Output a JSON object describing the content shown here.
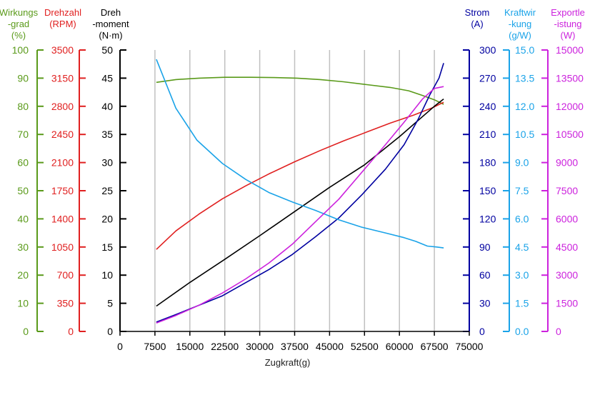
{
  "chart_data": {
    "type": "line",
    "xlabel": "Zugkraft(g)",
    "xlim": [
      0,
      75000
    ],
    "xticks": [
      0,
      7500,
      15000,
      22500,
      30000,
      37500,
      45000,
      52500,
      60000,
      67500,
      75000
    ],
    "grid": {
      "vertical": true,
      "horizontal": false
    },
    "axes": [
      {
        "id": "eff",
        "side": "left",
        "title": [
          "Wirkungs",
          "-grad",
          "(%)"
        ],
        "color": "#5a9a1a",
        "min": 0,
        "max": 100,
        "ticks": [
          0,
          10,
          20,
          30,
          40,
          50,
          60,
          70,
          80,
          90,
          100
        ]
      },
      {
        "id": "rpm",
        "side": "left",
        "title": [
          "Drehzahl",
          "(RPM)"
        ],
        "color": "#e02020",
        "min": 0,
        "max": 3500,
        "ticks": [
          0,
          350,
          700,
          1050,
          1400,
          1750,
          2100,
          2450,
          2800,
          3150,
          3500
        ]
      },
      {
        "id": "torque",
        "side": "left",
        "title": [
          "Dreh",
          "-moment",
          "(N·m)"
        ],
        "color": "#000000",
        "min": 0,
        "max": 50,
        "ticks": [
          0,
          5,
          10,
          15,
          20,
          25,
          30,
          35,
          40,
          45,
          50
        ]
      },
      {
        "id": "current",
        "side": "right",
        "title": [
          "Strom",
          "(A)"
        ],
        "color": "#0000a0",
        "min": 0,
        "max": 300,
        "ticks": [
          0,
          30,
          60,
          90,
          120,
          150,
          180,
          210,
          240,
          270,
          300
        ]
      },
      {
        "id": "ratio",
        "side": "right",
        "title": [
          "Kraftwir",
          "-kung",
          "(g/W)"
        ],
        "color": "#1aa3e8",
        "min": 0,
        "max": 15,
        "ticks": [
          "0.0",
          "1.5",
          "3.0",
          "4.5",
          "6.0",
          "7.5",
          "9.0",
          "10.5",
          "12.0",
          "13.5",
          "15.0"
        ]
      },
      {
        "id": "power",
        "side": "right",
        "title": [
          "Exportle",
          "-istung",
          "(W)"
        ],
        "color": "#cc22dd",
        "min": 0,
        "max": 15000,
        "ticks": [
          0,
          1500,
          3000,
          4500,
          6000,
          7500,
          9000,
          10500,
          12000,
          13500,
          15000
        ]
      }
    ],
    "series": [
      {
        "axis": "eff",
        "color": "#5a9a1a",
        "x": [
          7800,
          12000,
          17000,
          22500,
          28000,
          33000,
          38000,
          43000,
          48000,
          53000,
          58000,
          62000,
          65000,
          67500,
          69500
        ],
        "y": [
          88.5,
          89.5,
          90.0,
          90.3,
          90.3,
          90.2,
          90.0,
          89.5,
          88.7,
          87.7,
          86.7,
          85.5,
          83.8,
          82.3,
          80.7
        ]
      },
      {
        "axis": "rpm",
        "color": "#e02020",
        "x": [
          7800,
          12000,
          17000,
          22000,
          27000,
          32000,
          37500,
          43000,
          48000,
          53000,
          58000,
          63000,
          67000,
          69500
        ],
        "y": [
          1020,
          1250,
          1460,
          1650,
          1810,
          1960,
          2110,
          2250,
          2370,
          2480,
          2590,
          2690,
          2780,
          2850
        ]
      },
      {
        "axis": "torque",
        "color": "#000000",
        "x": [
          7800,
          15000,
          22500,
          30000,
          37500,
          45000,
          52500,
          60000,
          67500,
          69500
        ],
        "y": [
          4.5,
          8.7,
          12.8,
          17.0,
          21.3,
          25.6,
          29.6,
          34.6,
          40.0,
          41.3
        ]
      },
      {
        "axis": "current",
        "color": "#0000a0",
        "x": [
          7800,
          12000,
          17000,
          22000,
          27000,
          32000,
          37000,
          42000,
          47000,
          52000,
          57000,
          61000,
          64000,
          66500,
          68500,
          69500
        ],
        "y": [
          10,
          18,
          28,
          38,
          52,
          66,
          82,
          101,
          121,
          146,
          173,
          199,
          226,
          252,
          270,
          286
        ]
      },
      {
        "axis": "ratio",
        "color": "#1aa3e8",
        "x": [
          7800,
          12000,
          16500,
          22000,
          27000,
          32000,
          37000,
          42000,
          47000,
          52000,
          57000,
          61000,
          63500,
          66000,
          68000,
          69500
        ],
        "y": [
          14.5,
          11.9,
          10.2,
          8.95,
          8.1,
          7.4,
          6.9,
          6.45,
          5.95,
          5.55,
          5.25,
          5.0,
          4.8,
          4.55,
          4.5,
          4.45
        ]
      },
      {
        "axis": "power",
        "color": "#cc22dd",
        "x": [
          7800,
          12000,
          17000,
          22000,
          27000,
          32000,
          37000,
          42000,
          47000,
          52000,
          57000,
          61000,
          65000,
          67500,
          69500
        ],
        "y": [
          450,
          850,
          1400,
          2050,
          2800,
          3650,
          4650,
          5850,
          7050,
          8500,
          9950,
          11150,
          12400,
          12950,
          13050
        ]
      }
    ]
  }
}
